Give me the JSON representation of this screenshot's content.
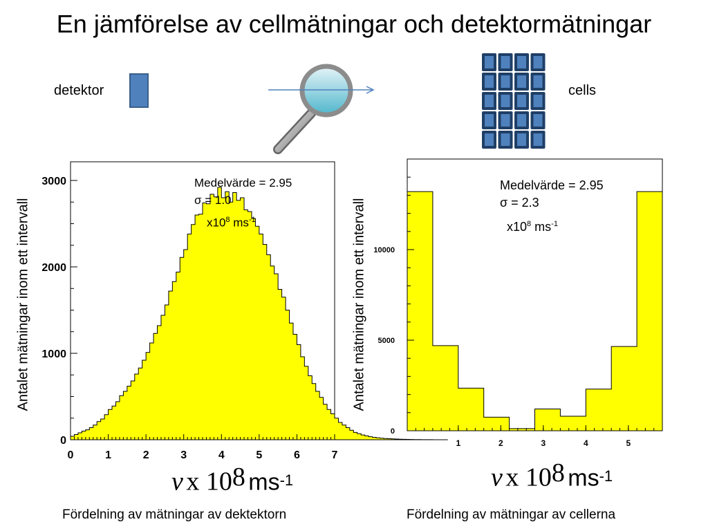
{
  "title": "En jämförelse av cellmätningar och detektormätningar",
  "schematic": {
    "detector_label": "detektor",
    "cells_label": "cells"
  },
  "y_axis_label": "Antalet mätningar inom ett intervall",
  "x_axis": {
    "symbol": "v",
    "times": "x 10",
    "exponent": "8",
    "unit": "ms",
    "unit_exp": "-1"
  },
  "chart_data": [
    {
      "type": "bar",
      "caption": "Fördelning av mätningar av dektektorn",
      "stats": {
        "mean": "Medelvärde = 2.95",
        "sigma_symbol": "σ",
        "sigma": " = 1.0",
        "unit_prefix": "x10",
        "unit_exp1": "8",
        "unit_mid": " ms",
        "unit_exp2": "-1"
      },
      "xlim": [
        0,
        7
      ],
      "ylim": [
        0,
        3000
      ],
      "xticks": [
        0,
        1,
        2,
        3,
        4,
        5,
        6,
        7
      ],
      "yticks": [
        0,
        1000,
        2000,
        3000
      ],
      "bin_width": 0.1,
      "bin_start": 0,
      "values": [
        40,
        60,
        80,
        100,
        115,
        140,
        170,
        210,
        240,
        290,
        350,
        390,
        440,
        510,
        560,
        620,
        680,
        760,
        830,
        920,
        1010,
        1120,
        1230,
        1320,
        1440,
        1560,
        1720,
        1830,
        1940,
        2110,
        2200,
        2380,
        2490,
        2600,
        2610,
        2740,
        2730,
        2840,
        2810,
        2920,
        2800,
        2870,
        2750,
        2860,
        2770,
        2800,
        2660,
        2640,
        2560,
        2470,
        2380,
        2260,
        2140,
        2010,
        1920,
        1740,
        1650,
        1500,
        1350,
        1220,
        1100,
        960,
        850,
        740,
        650,
        560,
        490,
        410,
        350,
        300,
        250,
        200,
        170,
        140,
        110,
        85,
        70,
        55,
        45,
        35,
        28,
        22,
        18,
        14,
        12,
        10,
        8,
        6,
        5,
        4,
        3,
        2,
        2,
        1,
        1,
        1,
        0,
        0,
        0,
        0
      ]
    },
    {
      "type": "bar",
      "caption": "Fördelning av mätningar av cellerna",
      "stats": {
        "mean": "Medelvärde = 2.95",
        "sigma_symbol": "σ",
        "sigma": " = 2.3",
        "unit_prefix": "x10",
        "unit_exp1": "8",
        "unit_mid": " ms",
        "unit_exp2": "-1"
      },
      "xlim": [
        -0.2,
        5.8
      ],
      "ylim": [
        0,
        15000
      ],
      "xticks": [
        1,
        2,
        3,
        4,
        5
      ],
      "yticks": [
        0,
        5000,
        10000
      ],
      "bin_edges": [
        -0.2,
        0.4,
        1.0,
        1.6,
        2.2,
        2.8,
        3.4,
        4.0,
        4.6,
        5.2,
        5.8
      ],
      "values": [
        13200,
        4700,
        2350,
        750,
        120,
        1200,
        800,
        2300,
        4650,
        13200
      ]
    }
  ]
}
